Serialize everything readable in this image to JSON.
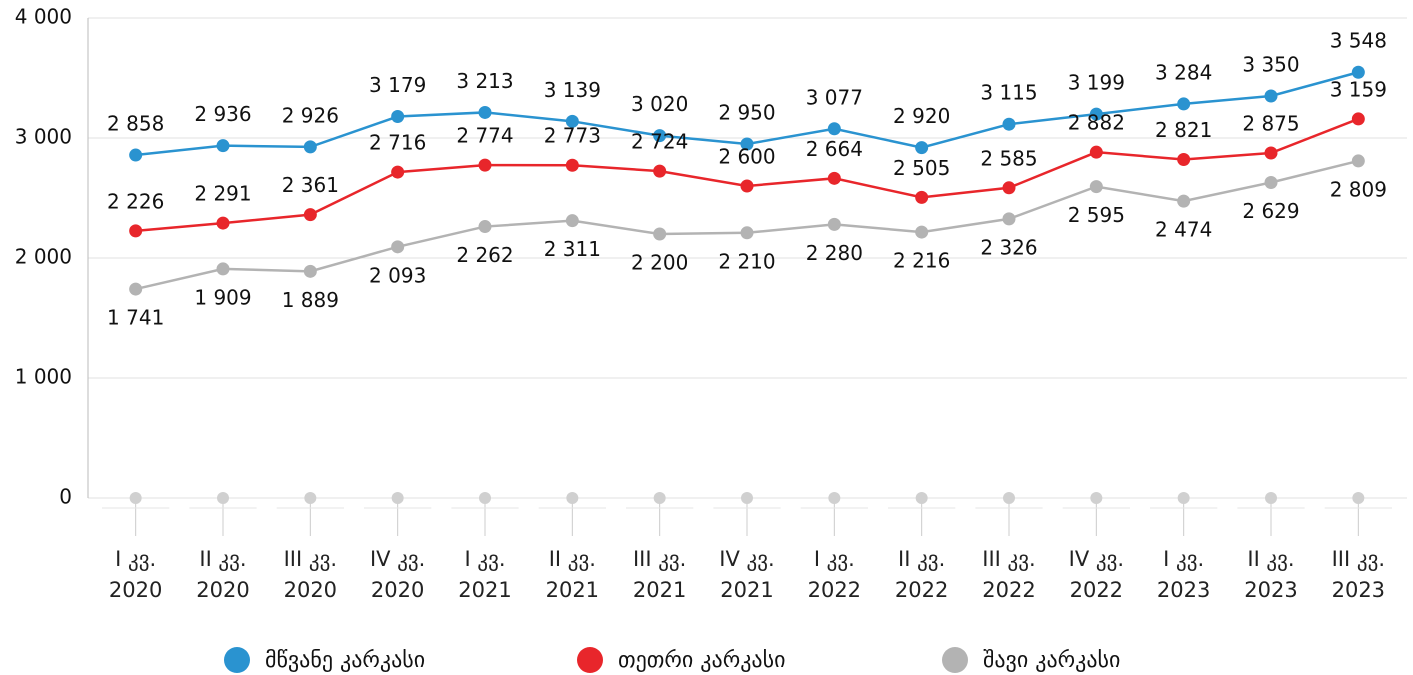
{
  "chart_data": {
    "type": "line",
    "categories": [
      "I კვ. 2020",
      "II კვ. 2020",
      "III კვ. 2020",
      "IV კვ. 2020",
      "I კვ. 2021",
      "II კვ. 2021",
      "III კვ. 2021",
      "IV კვ. 2021",
      "I კვ. 2022",
      "II კვ. 2022",
      "III კვ. 2022",
      "IV კვ. 2022",
      "I კვ. 2023",
      "II კვ. 2023",
      "III კვ. 2023"
    ],
    "series": [
      {
        "name": "მწვანე კარკასი",
        "color": "#2a93d0",
        "values": [
          2858,
          2936,
          2926,
          3179,
          3213,
          3139,
          3020,
          2950,
          3077,
          2920,
          3115,
          3199,
          3284,
          3350,
          3548
        ],
        "value_labels": [
          "2 858",
          "2 936",
          "2 926",
          "3 179",
          "3 213",
          "3 139",
          "3 020",
          "2 950",
          "3 077",
          "2 920",
          "3 115",
          "3 199",
          "3 284",
          "3 350",
          "3 548"
        ]
      },
      {
        "name": "თეთრი კარკასი",
        "color": "#e8262b",
        "values": [
          2226,
          2291,
          2361,
          2716,
          2774,
          2773,
          2724,
          2600,
          2664,
          2505,
          2585,
          2882,
          2821,
          2875,
          3159
        ],
        "value_labels": [
          "2 226",
          "2 291",
          "2 361",
          "2 716",
          "2 774",
          "2 773",
          "2 724",
          "2 600",
          "2 664",
          "2 505",
          "2 585",
          "2 882",
          "2 821",
          "2 875",
          "3 159"
        ]
      },
      {
        "name": "შავი კარკასი",
        "color": "#b3b3b3",
        "values": [
          1741,
          1909,
          1889,
          2093,
          2262,
          2311,
          2200,
          2210,
          2280,
          2216,
          2326,
          2595,
          2474,
          2629,
          2809
        ],
        "value_labels": [
          "1 741",
          "1 909",
          "1 889",
          "2 093",
          "2 262",
          "2 311",
          "2 200",
          "2 210",
          "2 280",
          "2 216",
          "2 326",
          "2 595",
          "2 474",
          "2 629",
          "2 809"
        ]
      }
    ],
    "ylim": [
      0,
      4000
    ],
    "yticks": [
      0,
      {
        "value": 1000,
        "label": "1 000"
      },
      {
        "value": 2000,
        "label": "2 000"
      },
      {
        "value": 3000,
        "label": "3 000"
      },
      {
        "value": 4000,
        "label": "4 000"
      }
    ],
    "grid": true,
    "legend": "bottom"
  }
}
